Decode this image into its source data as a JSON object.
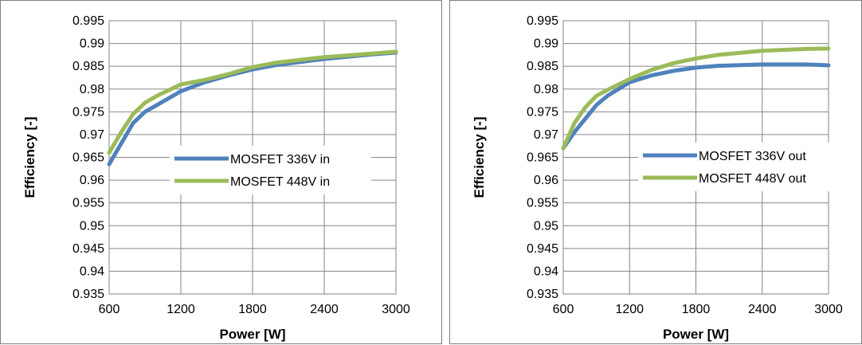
{
  "chart_data": [
    {
      "type": "line",
      "title": "",
      "xlabel": "Power [W]",
      "ylabel": "Efficiency [-]",
      "xlim": [
        600,
        3000
      ],
      "ylim": [
        0.935,
        0.995
      ],
      "x_ticks": [
        "600",
        "1200",
        "1800",
        "2400",
        "3000"
      ],
      "y_ticks": [
        "0.935",
        "0.94",
        "0.945",
        "0.95",
        "0.955",
        "0.96",
        "0.965",
        "0.97",
        "0.975",
        "0.98",
        "0.985",
        "0.99",
        "0.995"
      ],
      "grid": true,
      "legend_position": "center-right",
      "series": [
        {
          "name": "MOSFET 336V in",
          "color": "#4f81bd",
          "x": [
            600,
            700,
            800,
            900,
            1000,
            1200,
            1400,
            1600,
            1800,
            2000,
            2400,
            2800,
            3000
          ],
          "y": [
            0.9635,
            0.968,
            0.9725,
            0.975,
            0.9765,
            0.9795,
            0.9815,
            0.983,
            0.9843,
            0.9853,
            0.9866,
            0.9876,
            0.988
          ]
        },
        {
          "name": "MOSFET 448V in",
          "color": "#9bbb59",
          "x": [
            600,
            700,
            800,
            900,
            1000,
            1200,
            1400,
            1600,
            1800,
            2000,
            2400,
            2800,
            3000
          ],
          "y": [
            0.966,
            0.9705,
            0.9745,
            0.977,
            0.9785,
            0.981,
            0.982,
            0.9833,
            0.9848,
            0.9858,
            0.987,
            0.9878,
            0.9882
          ]
        }
      ]
    },
    {
      "type": "line",
      "title": "",
      "xlabel": "Power [W]",
      "ylabel": "Efficiency [-]",
      "xlim": [
        600,
        3000
      ],
      "ylim": [
        0.935,
        0.995
      ],
      "x_ticks": [
        "600",
        "1200",
        "1800",
        "2400",
        "3000"
      ],
      "y_ticks": [
        "0.935",
        "0.94",
        "0.945",
        "0.95",
        "0.955",
        "0.96",
        "0.965",
        "0.97",
        "0.975",
        "0.98",
        "0.985",
        "0.99",
        "0.995"
      ],
      "grid": true,
      "legend_position": "center-right",
      "series": [
        {
          "name": "MOSFET 336V out",
          "color": "#4f81bd",
          "x": [
            600,
            700,
            800,
            900,
            1000,
            1200,
            1400,
            1600,
            1800,
            2000,
            2400,
            2800,
            3000
          ],
          "y": [
            0.967,
            0.9705,
            0.9735,
            0.9765,
            0.9785,
            0.9815,
            0.983,
            0.984,
            0.9847,
            0.9851,
            0.9854,
            0.9854,
            0.9852
          ]
        },
        {
          "name": "MOSFET 448V out",
          "color": "#9bbb59",
          "x": [
            600,
            700,
            800,
            900,
            1000,
            1200,
            1400,
            1600,
            1800,
            2000,
            2400,
            2800,
            3000
          ],
          "y": [
            0.967,
            0.9725,
            0.976,
            0.9785,
            0.9798,
            0.9822,
            0.9842,
            0.9857,
            0.9867,
            0.9875,
            0.9884,
            0.9888,
            0.9889
          ]
        }
      ]
    }
  ]
}
